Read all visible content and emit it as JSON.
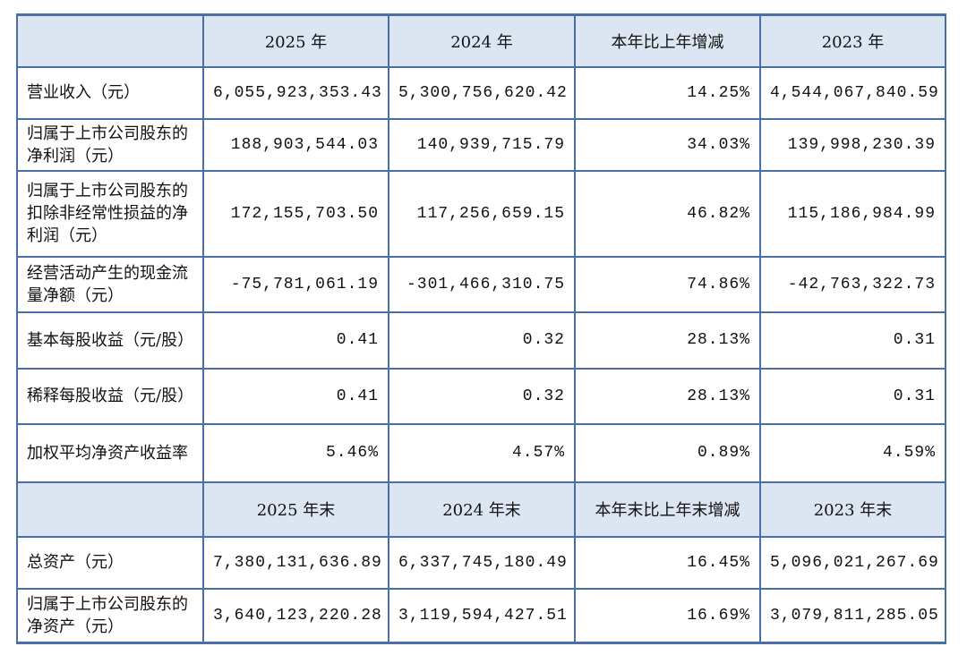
{
  "table": {
    "header": [
      "2025 年",
      "2024 年",
      "本年比上年增减",
      "2023 年"
    ],
    "rows": [
      {
        "label": "营业收入（元）",
        "cells": [
          "6,055,923,353.43",
          "5,300,756,620.42",
          "14.25%",
          "4,544,067,840.59"
        ]
      },
      {
        "label": "归属于上市公司股东的净利润（元）",
        "cells": [
          "188,903,544.03",
          "140,939,715.79",
          "34.03%",
          "139,998,230.39"
        ]
      },
      {
        "label": "归属于上市公司股东的扣除非经常性损益的净利润（元）",
        "cells": [
          "172,155,703.50",
          "117,256,659.15",
          "46.82%",
          "115,186,984.99"
        ]
      },
      {
        "label": "经营活动产生的现金流量净额（元）",
        "cells": [
          "-75,781,061.19",
          "-301,466,310.75",
          "74.86%",
          "-42,763,322.73"
        ]
      },
      {
        "label": "基本每股收益（元/股）",
        "cells": [
          "0.41",
          "0.32",
          "28.13%",
          "0.31"
        ]
      },
      {
        "label": "稀释每股收益（元/股）",
        "cells": [
          "0.41",
          "0.32",
          "28.13%",
          "0.31"
        ]
      },
      {
        "label": "加权平均净资产收益率",
        "cells": [
          "5.46%",
          "4.57%",
          "0.89%",
          "4.59%"
        ]
      }
    ],
    "header2": [
      "2025 年末",
      "2024 年末",
      "本年末比上年末增减",
      "2023 年末"
    ],
    "rows2": [
      {
        "label": "总资产（元）",
        "cells": [
          "7,380,131,636.89",
          "6,337,745,180.49",
          "16.45%",
          "5,096,021,267.69"
        ]
      },
      {
        "label": "归属于上市公司股东的净资产（元）",
        "cells": [
          "3,640,123,220.28",
          "3,119,594,427.51",
          "16.69%",
          "3,079,811,285.05"
        ]
      }
    ]
  }
}
